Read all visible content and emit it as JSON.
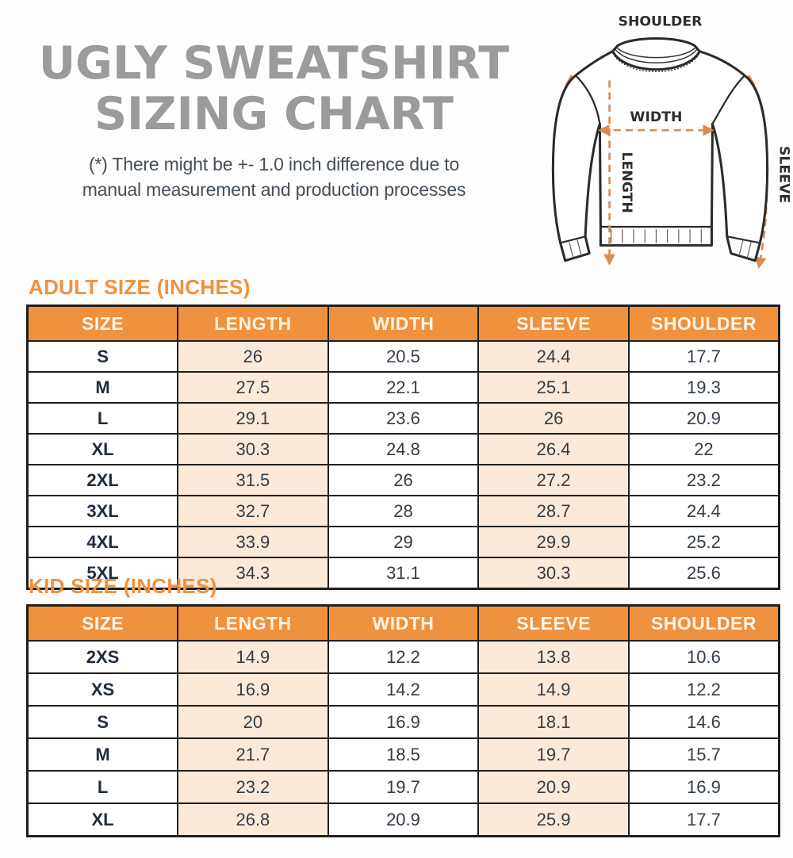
{
  "page": {
    "title_line1": "UGLY SWEATSHIRT",
    "title_line2": "SIZING CHART",
    "disclaimer_line1": "(*) There might be +- 1.0 inch difference due to",
    "disclaimer_line2": "manual measurement and production processes"
  },
  "diagram": {
    "labels": {
      "shoulder": "SHOULDER",
      "width": "WIDTH",
      "length": "LENGTH",
      "sleeve": "SLEEVE"
    }
  },
  "colors": {
    "accent_orange": "#f0913d",
    "cell_peach": "#fbe9d9",
    "title_gray": "#9b9b9b",
    "table_border": "#1f1f1f",
    "arrow_orange": "#dc8a52",
    "header_text": "#fdf6e8",
    "body_text": "#333d49"
  },
  "adult_table": {
    "heading": "ADULT SIZE (INCHES)",
    "columns": [
      "SIZE",
      "LENGTH",
      "WIDTH",
      "SLEEVE",
      "SHOULDER"
    ],
    "rows": [
      {
        "size": "S",
        "length": "26",
        "width": "20.5",
        "sleeve": "24.4",
        "shoulder": "17.7"
      },
      {
        "size": "M",
        "length": "27.5",
        "width": "22.1",
        "sleeve": "25.1",
        "shoulder": "19.3"
      },
      {
        "size": "L",
        "length": "29.1",
        "width": "23.6",
        "sleeve": "26",
        "shoulder": "20.9"
      },
      {
        "size": "XL",
        "length": "30.3",
        "width": "24.8",
        "sleeve": "26.4",
        "shoulder": "22"
      },
      {
        "size": "2XL",
        "length": "31.5",
        "width": "26",
        "sleeve": "27.2",
        "shoulder": "23.2"
      },
      {
        "size": "3XL",
        "length": "32.7",
        "width": "28",
        "sleeve": "28.7",
        "shoulder": "24.4"
      },
      {
        "size": "4XL",
        "length": "33.9",
        "width": "29",
        "sleeve": "29.9",
        "shoulder": "25.2"
      },
      {
        "size": "5XL",
        "length": "34.3",
        "width": "31.1",
        "sleeve": "30.3",
        "shoulder": "25.6"
      }
    ]
  },
  "kid_table": {
    "heading": "KID SIZE (INCHES)",
    "columns": [
      "SIZE",
      "LENGTH",
      "WIDTH",
      "SLEEVE",
      "SHOULDER"
    ],
    "rows": [
      {
        "size": "2XS",
        "length": "14.9",
        "width": "12.2",
        "sleeve": "13.8",
        "shoulder": "10.6"
      },
      {
        "size": "XS",
        "length": "16.9",
        "width": "14.2",
        "sleeve": "14.9",
        "shoulder": "12.2"
      },
      {
        "size": "S",
        "length": "20",
        "width": "16.9",
        "sleeve": "18.1",
        "shoulder": "14.6"
      },
      {
        "size": "M",
        "length": "21.7",
        "width": "18.5",
        "sleeve": "19.7",
        "shoulder": "15.7"
      },
      {
        "size": "L",
        "length": "23.2",
        "width": "19.7",
        "sleeve": "20.9",
        "shoulder": "16.9"
      },
      {
        "size": "XL",
        "length": "26.8",
        "width": "20.9",
        "sleeve": "25.9",
        "shoulder": "17.7"
      }
    ]
  }
}
